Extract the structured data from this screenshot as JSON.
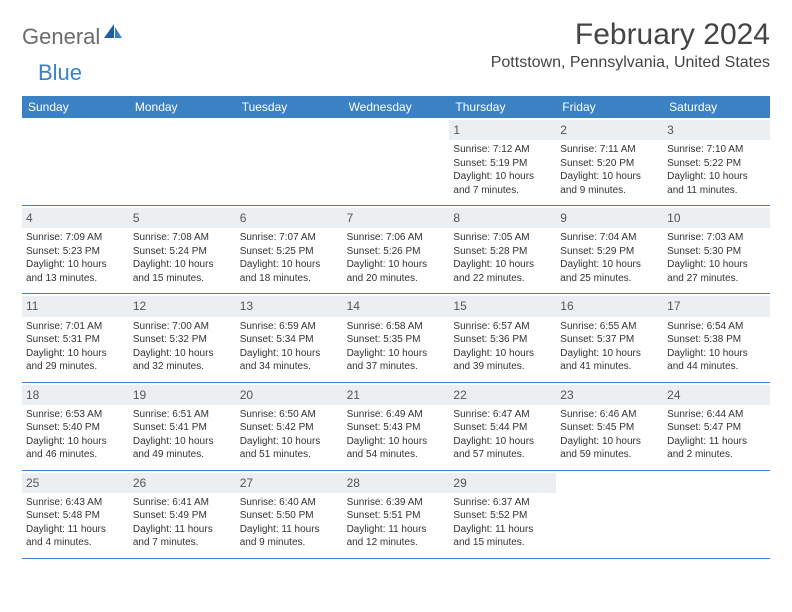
{
  "logo": {
    "text1": "General",
    "text2": "Blue"
  },
  "title": "February 2024",
  "location": "Pottstown, Pennsylvania, United States",
  "colors": {
    "header_bg": "#3b82c4",
    "daynum_bg": "#eceff1",
    "border": "#3b82c4",
    "logo_gray": "#6b6b6b",
    "logo_blue": "#3b82c4"
  },
  "layout": {
    "columns": 7,
    "rows": 5,
    "cell_fontsize": 10,
    "weekday_fontsize": 12
  },
  "weekdays": [
    "Sunday",
    "Monday",
    "Tuesday",
    "Wednesday",
    "Thursday",
    "Friday",
    "Saturday"
  ],
  "weeks": [
    [
      {
        "empty": true
      },
      {
        "empty": true
      },
      {
        "empty": true
      },
      {
        "empty": true
      },
      {
        "day": "1",
        "sunrise": "Sunrise: 7:12 AM",
        "sunset": "Sunset: 5:19 PM",
        "daylight1": "Daylight: 10 hours",
        "daylight2": "and 7 minutes."
      },
      {
        "day": "2",
        "sunrise": "Sunrise: 7:11 AM",
        "sunset": "Sunset: 5:20 PM",
        "daylight1": "Daylight: 10 hours",
        "daylight2": "and 9 minutes."
      },
      {
        "day": "3",
        "sunrise": "Sunrise: 7:10 AM",
        "sunset": "Sunset: 5:22 PM",
        "daylight1": "Daylight: 10 hours",
        "daylight2": "and 11 minutes."
      }
    ],
    [
      {
        "day": "4",
        "sunrise": "Sunrise: 7:09 AM",
        "sunset": "Sunset: 5:23 PM",
        "daylight1": "Daylight: 10 hours",
        "daylight2": "and 13 minutes."
      },
      {
        "day": "5",
        "sunrise": "Sunrise: 7:08 AM",
        "sunset": "Sunset: 5:24 PM",
        "daylight1": "Daylight: 10 hours",
        "daylight2": "and 15 minutes."
      },
      {
        "day": "6",
        "sunrise": "Sunrise: 7:07 AM",
        "sunset": "Sunset: 5:25 PM",
        "daylight1": "Daylight: 10 hours",
        "daylight2": "and 18 minutes."
      },
      {
        "day": "7",
        "sunrise": "Sunrise: 7:06 AM",
        "sunset": "Sunset: 5:26 PM",
        "daylight1": "Daylight: 10 hours",
        "daylight2": "and 20 minutes."
      },
      {
        "day": "8",
        "sunrise": "Sunrise: 7:05 AM",
        "sunset": "Sunset: 5:28 PM",
        "daylight1": "Daylight: 10 hours",
        "daylight2": "and 22 minutes."
      },
      {
        "day": "9",
        "sunrise": "Sunrise: 7:04 AM",
        "sunset": "Sunset: 5:29 PM",
        "daylight1": "Daylight: 10 hours",
        "daylight2": "and 25 minutes."
      },
      {
        "day": "10",
        "sunrise": "Sunrise: 7:03 AM",
        "sunset": "Sunset: 5:30 PM",
        "daylight1": "Daylight: 10 hours",
        "daylight2": "and 27 minutes."
      }
    ],
    [
      {
        "day": "11",
        "sunrise": "Sunrise: 7:01 AM",
        "sunset": "Sunset: 5:31 PM",
        "daylight1": "Daylight: 10 hours",
        "daylight2": "and 29 minutes."
      },
      {
        "day": "12",
        "sunrise": "Sunrise: 7:00 AM",
        "sunset": "Sunset: 5:32 PM",
        "daylight1": "Daylight: 10 hours",
        "daylight2": "and 32 minutes."
      },
      {
        "day": "13",
        "sunrise": "Sunrise: 6:59 AM",
        "sunset": "Sunset: 5:34 PM",
        "daylight1": "Daylight: 10 hours",
        "daylight2": "and 34 minutes."
      },
      {
        "day": "14",
        "sunrise": "Sunrise: 6:58 AM",
        "sunset": "Sunset: 5:35 PM",
        "daylight1": "Daylight: 10 hours",
        "daylight2": "and 37 minutes."
      },
      {
        "day": "15",
        "sunrise": "Sunrise: 6:57 AM",
        "sunset": "Sunset: 5:36 PM",
        "daylight1": "Daylight: 10 hours",
        "daylight2": "and 39 minutes."
      },
      {
        "day": "16",
        "sunrise": "Sunrise: 6:55 AM",
        "sunset": "Sunset: 5:37 PM",
        "daylight1": "Daylight: 10 hours",
        "daylight2": "and 41 minutes."
      },
      {
        "day": "17",
        "sunrise": "Sunrise: 6:54 AM",
        "sunset": "Sunset: 5:38 PM",
        "daylight1": "Daylight: 10 hours",
        "daylight2": "and 44 minutes."
      }
    ],
    [
      {
        "day": "18",
        "sunrise": "Sunrise: 6:53 AM",
        "sunset": "Sunset: 5:40 PM",
        "daylight1": "Daylight: 10 hours",
        "daylight2": "and 46 minutes."
      },
      {
        "day": "19",
        "sunrise": "Sunrise: 6:51 AM",
        "sunset": "Sunset: 5:41 PM",
        "daylight1": "Daylight: 10 hours",
        "daylight2": "and 49 minutes."
      },
      {
        "day": "20",
        "sunrise": "Sunrise: 6:50 AM",
        "sunset": "Sunset: 5:42 PM",
        "daylight1": "Daylight: 10 hours",
        "daylight2": "and 51 minutes."
      },
      {
        "day": "21",
        "sunrise": "Sunrise: 6:49 AM",
        "sunset": "Sunset: 5:43 PM",
        "daylight1": "Daylight: 10 hours",
        "daylight2": "and 54 minutes."
      },
      {
        "day": "22",
        "sunrise": "Sunrise: 6:47 AM",
        "sunset": "Sunset: 5:44 PM",
        "daylight1": "Daylight: 10 hours",
        "daylight2": "and 57 minutes."
      },
      {
        "day": "23",
        "sunrise": "Sunrise: 6:46 AM",
        "sunset": "Sunset: 5:45 PM",
        "daylight1": "Daylight: 10 hours",
        "daylight2": "and 59 minutes."
      },
      {
        "day": "24",
        "sunrise": "Sunrise: 6:44 AM",
        "sunset": "Sunset: 5:47 PM",
        "daylight1": "Daylight: 11 hours",
        "daylight2": "and 2 minutes."
      }
    ],
    [
      {
        "day": "25",
        "sunrise": "Sunrise: 6:43 AM",
        "sunset": "Sunset: 5:48 PM",
        "daylight1": "Daylight: 11 hours",
        "daylight2": "and 4 minutes."
      },
      {
        "day": "26",
        "sunrise": "Sunrise: 6:41 AM",
        "sunset": "Sunset: 5:49 PM",
        "daylight1": "Daylight: 11 hours",
        "daylight2": "and 7 minutes."
      },
      {
        "day": "27",
        "sunrise": "Sunrise: 6:40 AM",
        "sunset": "Sunset: 5:50 PM",
        "daylight1": "Daylight: 11 hours",
        "daylight2": "and 9 minutes."
      },
      {
        "day": "28",
        "sunrise": "Sunrise: 6:39 AM",
        "sunset": "Sunset: 5:51 PM",
        "daylight1": "Daylight: 11 hours",
        "daylight2": "and 12 minutes."
      },
      {
        "day": "29",
        "sunrise": "Sunrise: 6:37 AM",
        "sunset": "Sunset: 5:52 PM",
        "daylight1": "Daylight: 11 hours",
        "daylight2": "and 15 minutes."
      },
      {
        "empty": true
      },
      {
        "empty": true
      }
    ]
  ]
}
